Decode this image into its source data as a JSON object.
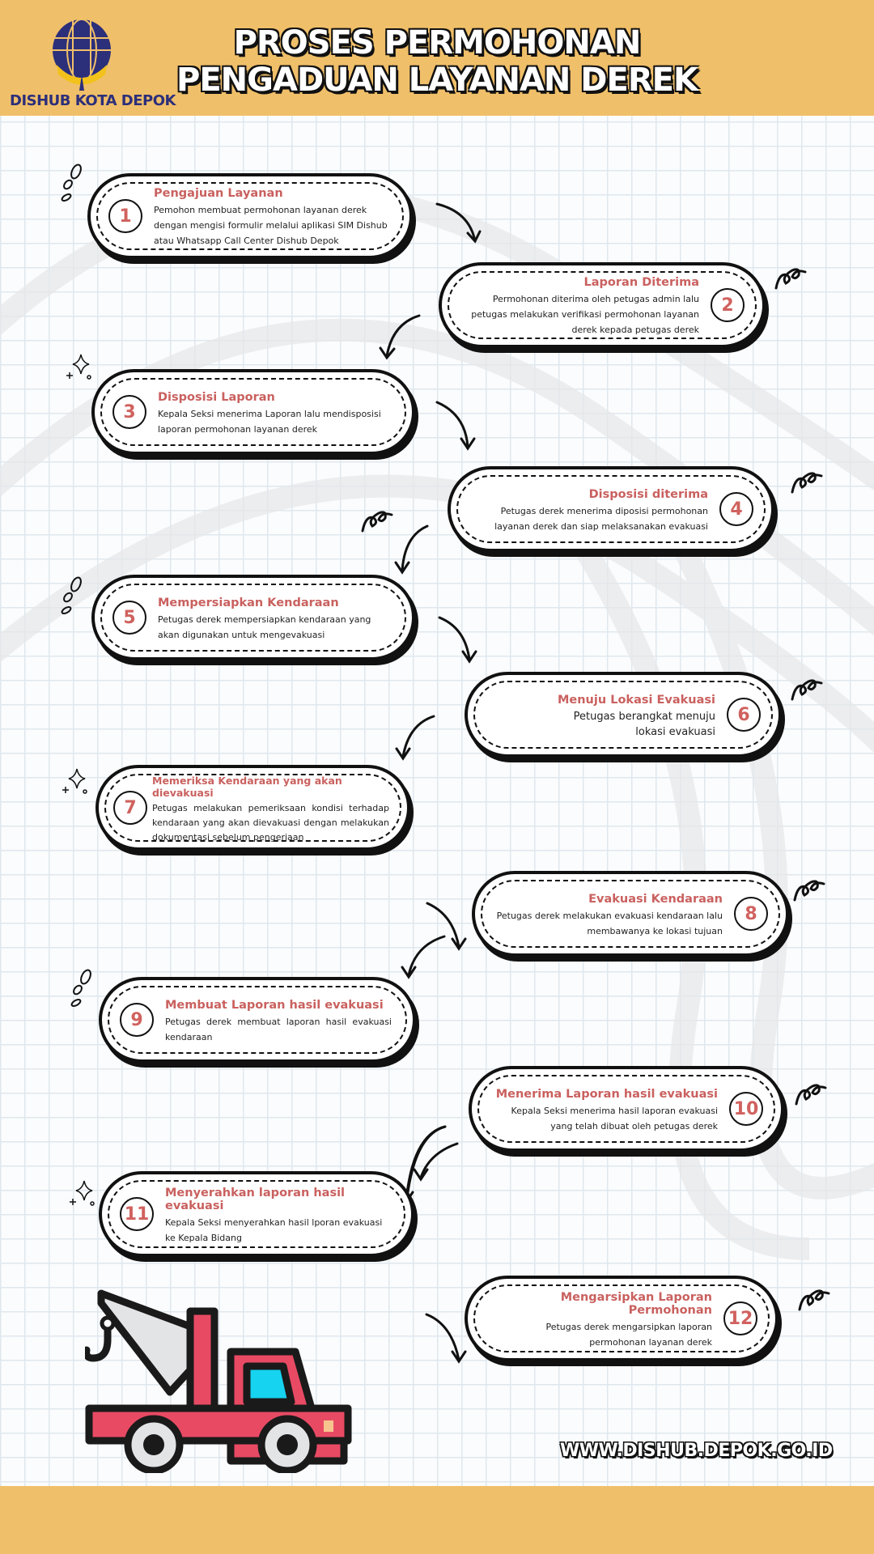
{
  "header": {
    "org": "DISHUB KOTA DEPOK",
    "title_line1": "PROSES PERMOHONAN",
    "title_line2": "PENGADUAN LAYANAN DEREK"
  },
  "colors": {
    "header_bg": "#f0bf69",
    "accent": "#c9615f",
    "truck": "#e84a64"
  },
  "steps": [
    {
      "num": "1",
      "title": "Pengajuan Layanan",
      "desc": "Pemohon membuat permohonan layanan derek dengan mengisi formulir melalui aplikasi SIM Dishub atau Whatsapp Call Center Dishub Depok"
    },
    {
      "num": "2",
      "title": "Laporan Diterima",
      "desc": "Permohonan diterima oleh petugas admin lalu petugas melakukan verifikasi permohonan layanan derek kepada petugas derek"
    },
    {
      "num": "3",
      "title": "Disposisi Laporan",
      "desc": "Kepala Seksi menerima Laporan lalu mendisposisi laporan permohonan layanan derek"
    },
    {
      "num": "4",
      "title": "Disposisi diterima",
      "desc": "Petugas derek menerima diposisi permohonan layanan derek dan siap melaksanakan evakuasi"
    },
    {
      "num": "5",
      "title": "Mempersiapkan Kendaraan",
      "desc": "Petugas derek mempersiapkan kendaraan yang akan digunakan untuk mengevakuasi"
    },
    {
      "num": "6",
      "title": "Menuju Lokasi Evakuasi",
      "desc": "Petugas berangkat menuju lokasi evakuasi"
    },
    {
      "num": "7",
      "title": "Memeriksa Kendaraan yang akan dievakuasi",
      "desc": "Petugas melakukan pemeriksaan kondisi terhadap kendaraan yang akan dievakuasi dengan melakukan dokumentasi sebelum pengerjaan"
    },
    {
      "num": "8",
      "title": "Evakuasi Kendaraan",
      "desc": "Petugas derek melakukan evakuasi kendaraan lalu membawanya ke lokasi tujuan"
    },
    {
      "num": "9",
      "title": "Membuat Laporan hasil evakuasi",
      "desc": "Petugas derek membuat laporan hasil evakuasi kendaraan"
    },
    {
      "num": "10",
      "title": "Menerima Laporan hasil evakuasi",
      "desc": "Kepala Seksi menerima hasil laporan evakuasi yang telah dibuat oleh petugas derek"
    },
    {
      "num": "11",
      "title": "Menyerahkan laporan hasil evakuasi",
      "desc": "Kepala Seksi menyerahkan hasil lporan evakuasi ke Kepala Bidang"
    },
    {
      "num": "12",
      "title": "Mengarsipkan Laporan Permohonan",
      "desc": "Petugas derek mengarsipkan laporan permohonan layanan derek"
    }
  ],
  "footer": {
    "website": "WWW.DISHUB.DEPOK.GO.ID"
  }
}
